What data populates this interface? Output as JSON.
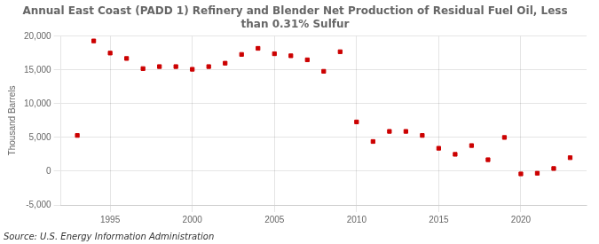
{
  "chart_data": {
    "type": "scatter",
    "title": "Annual East Coast (PADD 1) Refinery and Blender Net Production of Residual Fuel Oil, Less\nthan 0.31% Sulfur",
    "ylabel": "Thousand Barrels",
    "source": "Source: U.S. Energy Information Administration",
    "x": [
      1993,
      1994,
      1995,
      1996,
      1997,
      1998,
      1999,
      2000,
      2001,
      2002,
      2003,
      2004,
      2005,
      2006,
      2007,
      2008,
      2009,
      2010,
      2011,
      2012,
      2013,
      2014,
      2015,
      2016,
      2017,
      2018,
      2019,
      2020,
      2021,
      2022,
      2023
    ],
    "values": [
      5300,
      19300,
      17500,
      16700,
      15200,
      15500,
      15500,
      15100,
      15500,
      16000,
      17300,
      18200,
      17400,
      17100,
      16500,
      14800,
      17700,
      7300,
      4400,
      5900,
      5900,
      5300,
      3400,
      2500,
      3800,
      1700,
      5000,
      -400,
      -300,
      400,
      2000
    ],
    "color": "#cc0000",
    "marker": "square",
    "xlim": [
      1992,
      2024
    ],
    "xticks": [
      1995,
      2000,
      2005,
      2010,
      2015,
      2020
    ],
    "ylim": [
      -5000,
      20000
    ],
    "yticks": [
      {
        "value": -5000,
        "label": "-5,000"
      },
      0,
      {
        "value": 5000,
        "label": "5,000"
      },
      {
        "value": 10000,
        "label": "10,000"
      },
      {
        "value": 15000,
        "label": "15,000"
      },
      {
        "value": 20000,
        "label": "20,000"
      }
    ],
    "grid": true
  }
}
